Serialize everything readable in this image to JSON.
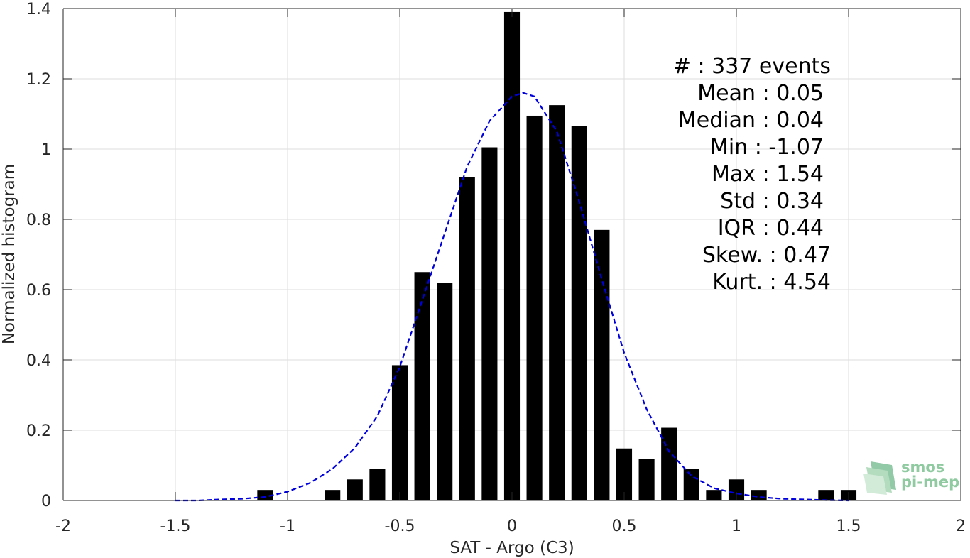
{
  "chart_data": {
    "type": "bar",
    "xlabel": "SAT - Argo (C3)",
    "ylabel": "Normalized histogram",
    "xlim": [
      -2,
      2
    ],
    "ylim": [
      0,
      1.4
    ],
    "xticks": [
      -2,
      -1.5,
      -1,
      -0.5,
      0,
      0.5,
      1,
      1.5,
      2
    ],
    "xtick_labels": [
      "-2",
      "-1.5",
      "-1",
      "-0.5",
      "0",
      "0.5",
      "1",
      "1.5",
      "2"
    ],
    "yticks": [
      0,
      0.2,
      0.4,
      0.6,
      0.8,
      1,
      1.2,
      1.4
    ],
    "ytick_labels": [
      "0",
      "0.2",
      "0.4",
      "0.6",
      "0.8",
      "1",
      "1.2",
      "1.4"
    ],
    "grid": true,
    "bin_width": 0.1,
    "bars": {
      "x": [
        -1.1,
        -0.8,
        -0.7,
        -0.6,
        -0.5,
        -0.4,
        -0.3,
        -0.2,
        -0.1,
        0,
        0.1,
        0.2,
        0.3,
        0.4,
        0.5,
        0.6,
        0.7,
        0.8,
        0.9,
        1.0,
        1.1,
        1.4,
        1.5
      ],
      "values": [
        0.03,
        0.03,
        0.06,
        0.09,
        0.385,
        0.65,
        0.62,
        0.92,
        1.005,
        1.39,
        1.095,
        1.125,
        1.065,
        0.77,
        0.148,
        0.118,
        0.207,
        0.09,
        0.03,
        0.06,
        0.03,
        0.03,
        0.03
      ],
      "color": "#000000"
    },
    "fit_curve": {
      "style": "dashed",
      "color": "#0000dd",
      "x": [
        -1.5,
        -1.4,
        -1.3,
        -1.2,
        -1.1,
        -1.0,
        -0.9,
        -0.8,
        -0.7,
        -0.6,
        -0.5,
        -0.4,
        -0.3,
        -0.2,
        -0.1,
        0,
        0.05,
        0.1,
        0.2,
        0.3,
        0.4,
        0.5,
        0.6,
        0.7,
        0.8,
        0.9,
        1.0,
        1.1,
        1.2,
        1.3,
        1.4,
        1.5
      ],
      "y": [
        0.0,
        0.0,
        0.003,
        0.005,
        0.01,
        0.025,
        0.05,
        0.09,
        0.15,
        0.24,
        0.38,
        0.57,
        0.76,
        0.95,
        1.08,
        1.15,
        1.16,
        1.15,
        1.05,
        0.85,
        0.63,
        0.42,
        0.26,
        0.14,
        0.07,
        0.035,
        0.02,
        0.01,
        0.005,
        0.003,
        0.001,
        0.0
      ]
    },
    "stats_lines": [
      "#  : 337 events",
      "Mean : 0.05",
      "Median : 0.04",
      "Min : -1.07",
      "Max : 1.54",
      "Std : 0.34",
      "IQR : 0.44",
      "Skew. : 0.47",
      "Kurt. : 4.54"
    ]
  },
  "logo": {
    "line1": "smos",
    "line2": "pi-mep"
  }
}
